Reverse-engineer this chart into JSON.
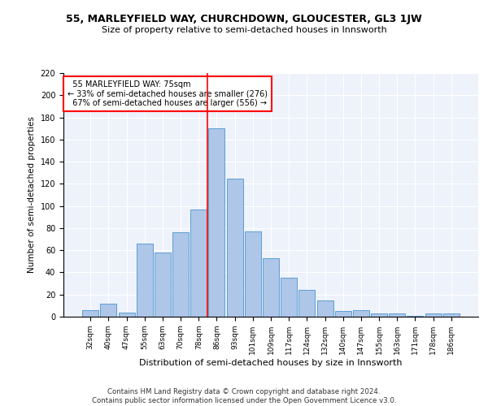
{
  "title1": "55, MARLEYFIELD WAY, CHURCHDOWN, GLOUCESTER, GL3 1JW",
  "title2": "Size of property relative to semi-detached houses in Innsworth",
  "xlabel": "Distribution of semi-detached houses by size in Innsworth",
  "ylabel": "Number of semi-detached properties",
  "categories": [
    "32sqm",
    "40sqm",
    "47sqm",
    "55sqm",
    "63sqm",
    "70sqm",
    "78sqm",
    "86sqm",
    "93sqm",
    "101sqm",
    "109sqm",
    "117sqm",
    "124sqm",
    "132sqm",
    "140sqm",
    "147sqm",
    "155sqm",
    "163sqm",
    "171sqm",
    "178sqm",
    "186sqm"
  ],
  "values": [
    6,
    12,
    4,
    66,
    58,
    76,
    97,
    170,
    125,
    77,
    53,
    35,
    24,
    15,
    5,
    6,
    3,
    3,
    1,
    3,
    3
  ],
  "bar_color": "#aec6e8",
  "bar_edge_color": "#5a9fd4",
  "property_label": "55 MARLEYFIELD WAY: 75sqm",
  "pct_smaller": 33,
  "pct_larger": 67,
  "count_smaller": 276,
  "count_larger": 556,
  "vline_x": 6.5,
  "vline_color": "red",
  "annotation_box_edge": "red",
  "footer": "Contains HM Land Registry data © Crown copyright and database right 2024.\nContains public sector information licensed under the Open Government Licence v3.0.",
  "background_color": "#eef2fb",
  "ylim": [
    0,
    220
  ],
  "yticks": [
    0,
    20,
    40,
    60,
    80,
    100,
    120,
    140,
    160,
    180,
    200,
    220
  ]
}
